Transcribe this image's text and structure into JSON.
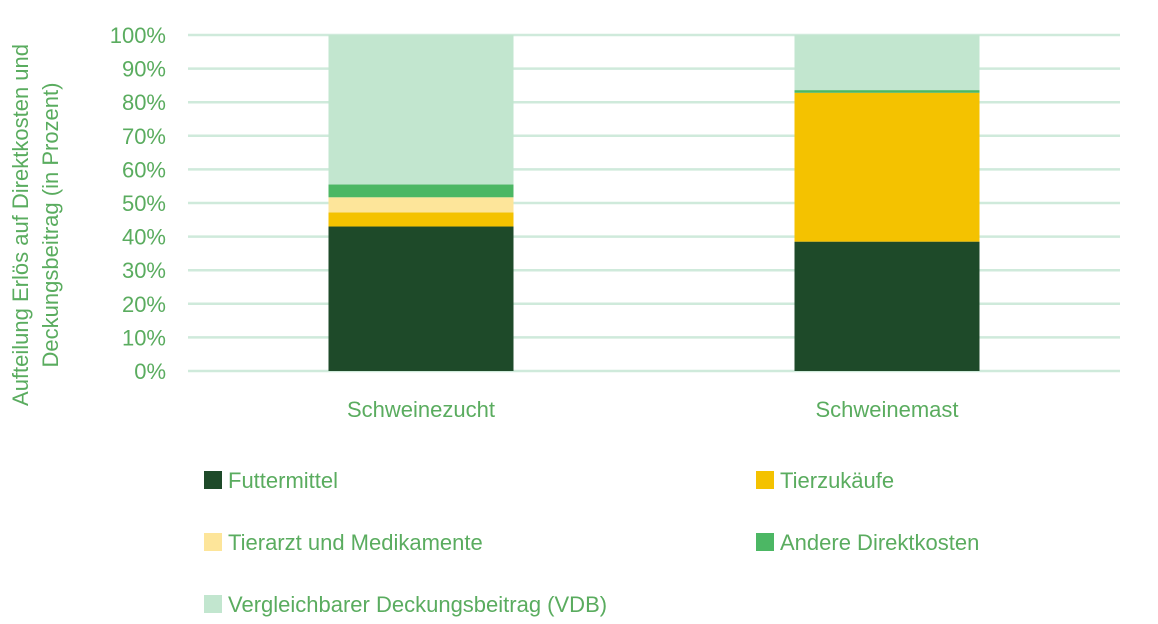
{
  "chart_data": {
    "type": "bar",
    "stacked": true,
    "percent_stacked": true,
    "title": "",
    "xlabel": "",
    "ylabel": "Aufteilung Erlös auf Direktkosten und Deckungsbeitrag (in Prozent)",
    "ylabel_lines": [
      "Aufteilung Erlös auf Direktkosten und",
      "Deckungsbeitrag (in Prozent)"
    ],
    "categories": [
      "Schweinezucht",
      "Schweinemast"
    ],
    "ylim": [
      0,
      100
    ],
    "yticks": [
      "0%",
      "10%",
      "20%",
      "30%",
      "40%",
      "50%",
      "60%",
      "70%",
      "80%",
      "90%",
      "100%"
    ],
    "grid": true,
    "legend_position": "bottom",
    "series": [
      {
        "name": "Futtermittel",
        "values": [
          43,
          38.5
        ],
        "color": "#1e4a29"
      },
      {
        "name": "Tierzukäufe",
        "values": [
          4.2,
          44.3
        ],
        "color": "#f4c200"
      },
      {
        "name": "Tierarzt und Medikamente",
        "values": [
          4.5,
          0
        ],
        "color": "#fde59a"
      },
      {
        "name": "Andere Direktkosten",
        "values": [
          3.8,
          0.8
        ],
        "color": "#4cb764"
      },
      {
        "name": "Vergleichbarer Deckungsbeitrag (VDB)",
        "values": [
          44.5,
          16.4
        ],
        "color": "#c2e6cf"
      }
    ],
    "colors": {
      "text": "#5aac5f",
      "grid": "#cfeadb"
    }
  }
}
